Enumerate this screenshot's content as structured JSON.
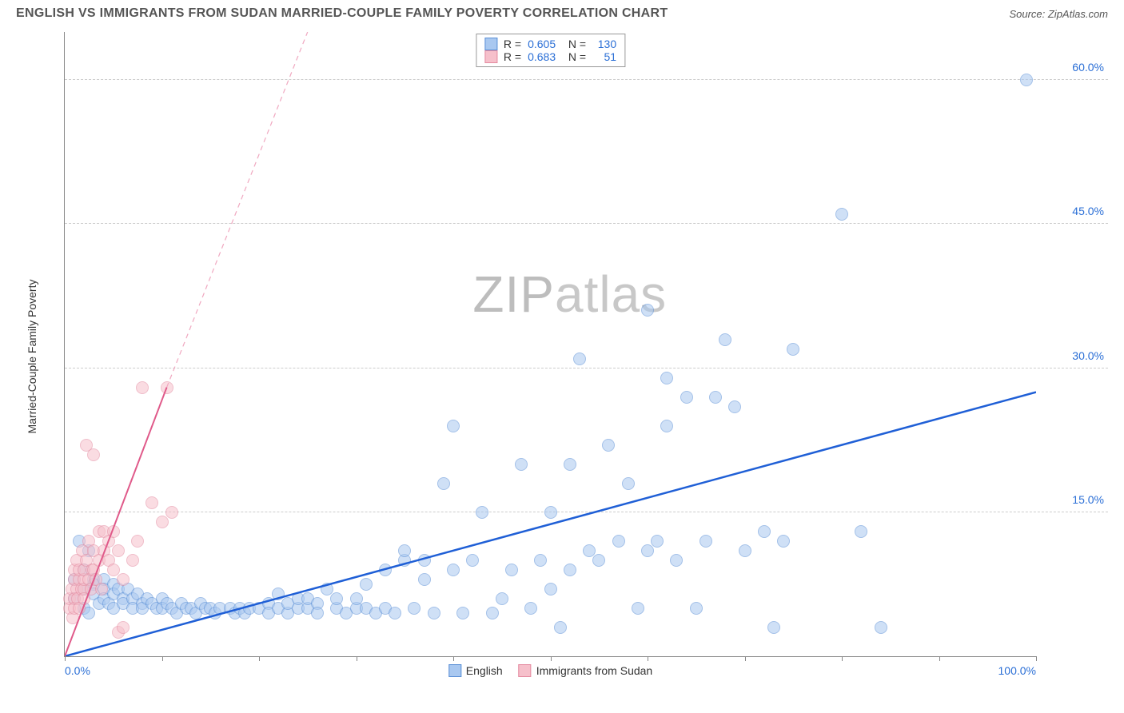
{
  "header": {
    "title": "ENGLISH VS IMMIGRANTS FROM SUDAN MARRIED-COUPLE FAMILY POVERTY CORRELATION CHART",
    "source": "Source: ZipAtlas.com"
  },
  "watermark": {
    "part1": "ZIP",
    "part2": "atlas"
  },
  "chart": {
    "type": "scatter",
    "ylabel": "Married-Couple Family Poverty",
    "xlim": [
      0,
      100
    ],
    "ylim": [
      0,
      65
    ],
    "xticks": [
      0,
      10,
      20,
      30,
      40,
      50,
      60,
      70,
      80,
      90,
      100
    ],
    "xtick_labels": {
      "0": "0.0%",
      "100": "100.0%"
    },
    "yticks": [
      15,
      30,
      45,
      60
    ],
    "ytick_labels": [
      "15.0%",
      "30.0%",
      "45.0%",
      "60.0%"
    ],
    "grid_color": "#cccccc",
    "axis_color": "#888888",
    "background": "#ffffff",
    "marker_radius": 8,
    "marker_opacity": 0.55,
    "series": [
      {
        "name": "English",
        "color_fill": "#a9c8f0",
        "color_stroke": "#5a8fd6",
        "R": "0.605",
        "N": "130",
        "trend": {
          "x1": 0,
          "y1": 0,
          "x2": 100,
          "y2": 27.5,
          "stroke": "#1f5fd6",
          "width": 2.5,
          "dash": ""
        },
        "points": [
          [
            1,
            8
          ],
          [
            1,
            6
          ],
          [
            1.5,
            12
          ],
          [
            2,
            7
          ],
          [
            2,
            9
          ],
          [
            2,
            5
          ],
          [
            2.5,
            11
          ],
          [
            2.5,
            4.5
          ],
          [
            3,
            8
          ],
          [
            3,
            7.5
          ],
          [
            3,
            6.5
          ],
          [
            3.5,
            5.5
          ],
          [
            4,
            8
          ],
          [
            4,
            7
          ],
          [
            4,
            6
          ],
          [
            4.5,
            5.5
          ],
          [
            5,
            7.5
          ],
          [
            5,
            6.5
          ],
          [
            5,
            5
          ],
          [
            5.5,
            7
          ],
          [
            6,
            6
          ],
          [
            6,
            5.5
          ],
          [
            6.5,
            7
          ],
          [
            7,
            6
          ],
          [
            7,
            5
          ],
          [
            7.5,
            6.5
          ],
          [
            8,
            5.5
          ],
          [
            8,
            5
          ],
          [
            8.5,
            6
          ],
          [
            9,
            5.5
          ],
          [
            9.5,
            5
          ],
          [
            10,
            6
          ],
          [
            10,
            5
          ],
          [
            10.5,
            5.5
          ],
          [
            11,
            5
          ],
          [
            11.5,
            4.5
          ],
          [
            12,
            5.5
          ],
          [
            12.5,
            5
          ],
          [
            13,
            5
          ],
          [
            13.5,
            4.5
          ],
          [
            14,
            5.5
          ],
          [
            14.5,
            5
          ],
          [
            15,
            5
          ],
          [
            15.5,
            4.5
          ],
          [
            16,
            5
          ],
          [
            17,
            5
          ],
          [
            17.5,
            4.5
          ],
          [
            18,
            5
          ],
          [
            18.5,
            4.5
          ],
          [
            19,
            5
          ],
          [
            20,
            5
          ],
          [
            21,
            5.5
          ],
          [
            21,
            4.5
          ],
          [
            22,
            5
          ],
          [
            22,
            6.5
          ],
          [
            23,
            4.5
          ],
          [
            23,
            5.5
          ],
          [
            24,
            5
          ],
          [
            24,
            6
          ],
          [
            25,
            5
          ],
          [
            25,
            6
          ],
          [
            26,
            5.5
          ],
          [
            26,
            4.5
          ],
          [
            27,
            7
          ],
          [
            28,
            5
          ],
          [
            28,
            6
          ],
          [
            29,
            4.5
          ],
          [
            30,
            5
          ],
          [
            30,
            6
          ],
          [
            31,
            5
          ],
          [
            31,
            7.5
          ],
          [
            32,
            4.5
          ],
          [
            33,
            5
          ],
          [
            33,
            9
          ],
          [
            34,
            4.5
          ],
          [
            35,
            10
          ],
          [
            35,
            11
          ],
          [
            36,
            5
          ],
          [
            37,
            8
          ],
          [
            37,
            10
          ],
          [
            38,
            4.5
          ],
          [
            39,
            18
          ],
          [
            40,
            9
          ],
          [
            40,
            24
          ],
          [
            41,
            4.5
          ],
          [
            42,
            10
          ],
          [
            43,
            15
          ],
          [
            44,
            4.5
          ],
          [
            45,
            6
          ],
          [
            46,
            9
          ],
          [
            47,
            20
          ],
          [
            48,
            5
          ],
          [
            49,
            10
          ],
          [
            50,
            15
          ],
          [
            50,
            7
          ],
          [
            51,
            3
          ],
          [
            52,
            9
          ],
          [
            52,
            20
          ],
          [
            53,
            31
          ],
          [
            54,
            11
          ],
          [
            55,
            10
          ],
          [
            56,
            22
          ],
          [
            57,
            12
          ],
          [
            58,
            18
          ],
          [
            59,
            5
          ],
          [
            60,
            36
          ],
          [
            60,
            11
          ],
          [
            61,
            12
          ],
          [
            62,
            29
          ],
          [
            62,
            24
          ],
          [
            63,
            10
          ],
          [
            64,
            27
          ],
          [
            65,
            5
          ],
          [
            66,
            12
          ],
          [
            67,
            27
          ],
          [
            68,
            33
          ],
          [
            69,
            26
          ],
          [
            70,
            11
          ],
          [
            72,
            13
          ],
          [
            73,
            3
          ],
          [
            74,
            12
          ],
          [
            75,
            32
          ],
          [
            80,
            46
          ],
          [
            82,
            13
          ],
          [
            84,
            3
          ],
          [
            99,
            60
          ]
        ]
      },
      {
        "name": "Immigrants from Sudan",
        "color_fill": "#f6c0cb",
        "color_stroke": "#e48aa0",
        "R": "0.683",
        "N": "51",
        "trend_solid": {
          "x1": 0,
          "y1": 0,
          "x2": 10.5,
          "y2": 28,
          "stroke": "#e05a8a",
          "width": 2,
          "dash": ""
        },
        "trend_dash": {
          "x1": 10.5,
          "y1": 28,
          "x2": 25,
          "y2": 65,
          "stroke": "#f0a8c0",
          "width": 1.2,
          "dash": "6 5"
        },
        "points": [
          [
            0.5,
            5
          ],
          [
            0.5,
            6
          ],
          [
            0.7,
            7
          ],
          [
            0.8,
            4
          ],
          [
            1,
            8
          ],
          [
            1,
            6
          ],
          [
            1,
            9
          ],
          [
            1,
            5
          ],
          [
            1.2,
            10
          ],
          [
            1.2,
            7
          ],
          [
            1.3,
            6
          ],
          [
            1.5,
            8
          ],
          [
            1.5,
            9
          ],
          [
            1.5,
            5
          ],
          [
            1.7,
            7
          ],
          [
            1.8,
            11
          ],
          [
            2,
            7
          ],
          [
            2,
            8
          ],
          [
            2,
            9
          ],
          [
            2,
            6
          ],
          [
            2.2,
            10
          ],
          [
            2.2,
            22
          ],
          [
            2.5,
            8
          ],
          [
            2.5,
            12
          ],
          [
            2.7,
            7
          ],
          [
            2.8,
            9
          ],
          [
            3,
            9
          ],
          [
            3,
            11
          ],
          [
            3,
            21
          ],
          [
            3.2,
            8
          ],
          [
            3.5,
            13
          ],
          [
            3.5,
            10
          ],
          [
            3.8,
            7
          ],
          [
            4,
            13
          ],
          [
            4,
            11
          ],
          [
            4.5,
            12
          ],
          [
            4.5,
            10
          ],
          [
            5,
            9
          ],
          [
            5,
            13
          ],
          [
            5.5,
            2.5
          ],
          [
            5.5,
            11
          ],
          [
            6,
            8
          ],
          [
            6,
            3
          ],
          [
            7,
            10
          ],
          [
            7.5,
            12
          ],
          [
            8,
            28
          ],
          [
            9,
            16
          ],
          [
            10,
            14
          ],
          [
            10.5,
            28
          ],
          [
            11,
            15
          ]
        ]
      }
    ],
    "legend_bottom": [
      {
        "label": "English",
        "fill": "#a9c8f0",
        "stroke": "#5a8fd6"
      },
      {
        "label": "Immigrants from Sudan",
        "fill": "#f6c0cb",
        "stroke": "#e48aa0"
      }
    ]
  }
}
